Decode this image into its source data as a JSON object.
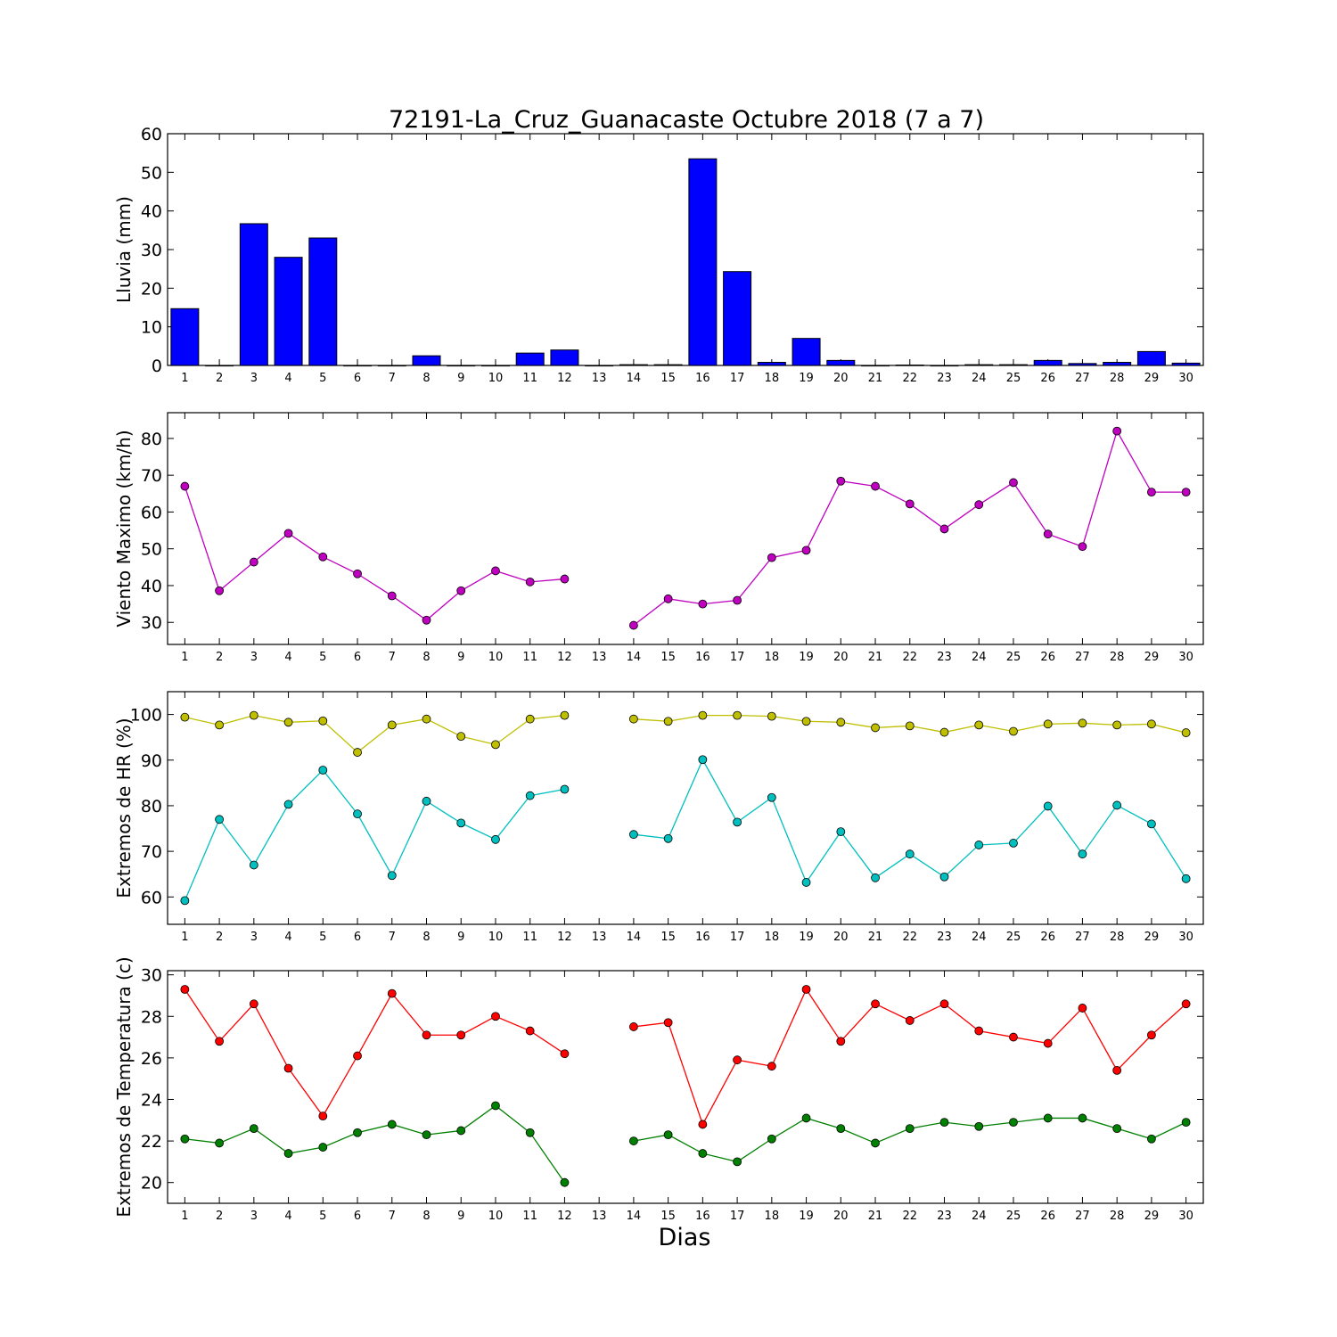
{
  "title": "72191-La_Cruz_Guanacaste Octubre 2018  (7 a 7)",
  "xlabel": "Dias",
  "chart_data": [
    {
      "type": "bar",
      "ylabel": "Lluvia (mm)",
      "ylim": [
        0,
        60
      ],
      "yticks": [
        0,
        10,
        20,
        30,
        40,
        50,
        60
      ],
      "x": [
        1,
        2,
        3,
        4,
        5,
        6,
        7,
        8,
        9,
        10,
        11,
        12,
        13,
        14,
        15,
        16,
        17,
        18,
        19,
        20,
        21,
        22,
        23,
        24,
        25,
        26,
        27,
        28,
        29,
        30
      ],
      "series": [
        {
          "color": "#0000ff",
          "values": [
            14.7,
            0,
            36.7,
            28.0,
            33.0,
            0,
            0,
            2.5,
            0,
            0,
            3.2,
            4.0,
            0,
            0.2,
            0.2,
            53.5,
            24.3,
            0.8,
            7.0,
            1.3,
            0,
            0.1,
            0,
            0.2,
            0.2,
            1.3,
            0.5,
            0.8,
            3.6,
            0.6
          ]
        }
      ]
    },
    {
      "type": "line",
      "ylabel": "Viento Maximo (km/h)",
      "ylim": [
        24,
        87
      ],
      "yticks": [
        30,
        40,
        50,
        60,
        70,
        80
      ],
      "x": [
        1,
        2,
        3,
        4,
        5,
        6,
        7,
        8,
        9,
        10,
        11,
        12,
        13,
        14,
        15,
        16,
        17,
        18,
        19,
        20,
        21,
        22,
        23,
        24,
        25,
        26,
        27,
        28,
        29,
        30
      ],
      "series": [
        {
          "color": "#bf00bf",
          "values": [
            67.0,
            38.6,
            46.4,
            54.2,
            47.8,
            43.2,
            37.2,
            30.6,
            38.6,
            44.0,
            41.0,
            41.8,
            null,
            29.2,
            36.4,
            35.0,
            36.0,
            47.6,
            49.6,
            68.4,
            67.0,
            62.2,
            55.4,
            62.0,
            68.0,
            54.0,
            50.6,
            82.0,
            65.4,
            65.4
          ]
        }
      ]
    },
    {
      "type": "line",
      "ylabel": "Extremos de HR (%)",
      "ylim": [
        54,
        105
      ],
      "yticks": [
        60,
        70,
        80,
        90,
        100
      ],
      "x": [
        1,
        2,
        3,
        4,
        5,
        6,
        7,
        8,
        9,
        10,
        11,
        12,
        13,
        14,
        15,
        16,
        17,
        18,
        19,
        20,
        21,
        22,
        23,
        24,
        25,
        26,
        27,
        28,
        29,
        30
      ],
      "series": [
        {
          "color": "#bfbf00",
          "values": [
            99.4,
            97.7,
            99.8,
            98.3,
            98.6,
            91.7,
            97.7,
            99.0,
            95.2,
            93.4,
            99.0,
            99.8,
            null,
            99.0,
            98.5,
            99.8,
            99.8,
            99.6,
            98.5,
            98.3,
            97.1,
            97.5,
            96.1,
            97.7,
            96.3,
            97.9,
            98.1,
            97.7,
            97.9,
            96.0
          ]
        },
        {
          "color": "#00bfbf",
          "values": [
            59.2,
            77.0,
            67.0,
            80.3,
            87.8,
            78.2,
            64.7,
            81.0,
            76.2,
            72.6,
            82.2,
            83.6,
            null,
            73.7,
            72.8,
            90.1,
            76.4,
            81.8,
            63.2,
            74.3,
            64.2,
            69.4,
            64.4,
            71.4,
            71.8,
            79.9,
            69.4,
            80.1,
            76.0,
            64.0
          ]
        }
      ]
    },
    {
      "type": "line",
      "ylabel": "Extremos de Temperatura (c)",
      "ylim": [
        19,
        30.2
      ],
      "yticks": [
        20,
        22,
        24,
        26,
        28,
        30
      ],
      "x": [
        1,
        2,
        3,
        4,
        5,
        6,
        7,
        8,
        9,
        10,
        11,
        12,
        13,
        14,
        15,
        16,
        17,
        18,
        19,
        20,
        21,
        22,
        23,
        24,
        25,
        26,
        27,
        28,
        29,
        30
      ],
      "series": [
        {
          "color": "#ff0000",
          "values": [
            29.3,
            26.8,
            28.6,
            25.5,
            23.2,
            26.1,
            29.1,
            27.1,
            27.1,
            28.0,
            27.3,
            26.2,
            null,
            27.5,
            27.7,
            22.8,
            25.9,
            25.6,
            29.3,
            26.8,
            28.6,
            27.8,
            28.6,
            27.3,
            27.0,
            26.7,
            28.4,
            25.4,
            27.1,
            28.6
          ]
        },
        {
          "color": "#008000",
          "values": [
            22.1,
            21.9,
            22.6,
            21.4,
            21.7,
            22.4,
            22.8,
            22.3,
            22.5,
            23.7,
            22.4,
            20.0,
            null,
            22.0,
            22.3,
            21.4,
            21.0,
            22.1,
            23.1,
            22.6,
            21.9,
            22.6,
            22.9,
            22.7,
            22.9,
            23.1,
            23.1,
            22.6,
            22.1,
            22.9
          ]
        }
      ]
    }
  ]
}
